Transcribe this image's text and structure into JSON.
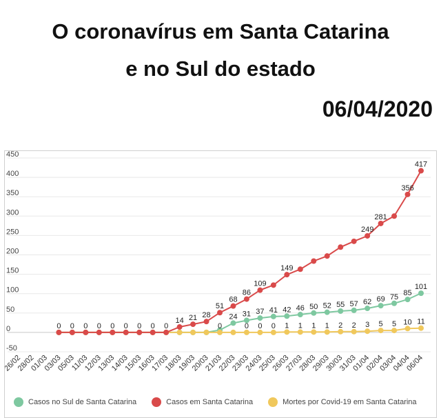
{
  "header": {
    "title_line1": "O coronavírus em Santa Catarina",
    "title_line2": "e no Sul do estado",
    "date": "06/04/2020"
  },
  "chart_data": {
    "type": "line",
    "categories": [
      "26/02",
      "28/02",
      "01/03",
      "03/03",
      "05/03",
      "11/03",
      "12/03",
      "13/03",
      "14/03",
      "15/03",
      "16/03",
      "17/03",
      "18/03",
      "19/03",
      "20/03",
      "21/03",
      "22/03",
      "23/03",
      "24/03",
      "25/03",
      "26/03",
      "27/03",
      "28/03",
      "29/03",
      "30/03",
      "31/03",
      "01/04",
      "02/04",
      "03/04",
      "04/04",
      "06/04"
    ],
    "y_ticks": [
      450,
      400,
      350,
      300,
      250,
      200,
      150,
      100,
      50,
      0,
      -50
    ],
    "ylim": [
      -50,
      450
    ],
    "grid": true,
    "legend_position": "bottom",
    "series": [
      {
        "name": "Casos no Sul de Santa Catarina",
        "color": "#7ec8a0",
        "values": [
          null,
          null,
          null,
          0,
          0,
          0,
          0,
          0,
          0,
          0,
          0,
          0,
          0,
          0,
          0,
          6,
          24,
          31,
          37,
          41,
          42,
          46,
          50,
          52,
          55,
          57,
          62,
          69,
          75,
          85,
          101
        ],
        "labels": [
          null,
          null,
          null,
          null,
          null,
          null,
          null,
          null,
          null,
          null,
          null,
          null,
          null,
          null,
          null,
          null,
          "24",
          "31",
          "37",
          "41",
          "42",
          "46",
          "50",
          "52",
          "55",
          "57",
          "62",
          "69",
          "75",
          "85",
          "101"
        ]
      },
      {
        "name": "Casos em Santa Catarina",
        "color": "#d94a4a",
        "values": [
          null,
          null,
          null,
          0,
          0,
          0,
          0,
          0,
          0,
          0,
          0,
          0,
          14,
          21,
          28,
          51,
          68,
          86,
          109,
          122,
          149,
          163,
          184,
          197,
          220,
          235,
          249,
          281,
          300,
          356,
          417
        ],
        "labels": [
          null,
          null,
          null,
          "0",
          "0",
          "0",
          "0",
          "0",
          "0",
          "0",
          "0",
          "0",
          "14",
          "21",
          "28",
          "51",
          "68",
          "86",
          "109",
          null,
          "149",
          null,
          null,
          null,
          null,
          null,
          "249",
          "281",
          null,
          "356",
          "417"
        ]
      },
      {
        "name": "Mortes por Covid-19 em Santa Catarina",
        "color": "#f0c85c",
        "values": [
          null,
          null,
          null,
          0,
          0,
          0,
          0,
          0,
          0,
          0,
          0,
          0,
          0,
          0,
          0,
          0,
          0,
          0,
          0,
          0,
          1,
          1,
          1,
          1,
          2,
          2,
          3,
          5,
          5,
          10,
          11
        ],
        "labels": [
          null,
          null,
          null,
          null,
          null,
          null,
          null,
          null,
          null,
          null,
          null,
          null,
          null,
          null,
          null,
          "0",
          null,
          "0",
          "0",
          "0",
          "1",
          "1",
          "1",
          "1",
          "2",
          "2",
          "3",
          "5",
          "5",
          "10",
          "11"
        ]
      }
    ]
  }
}
